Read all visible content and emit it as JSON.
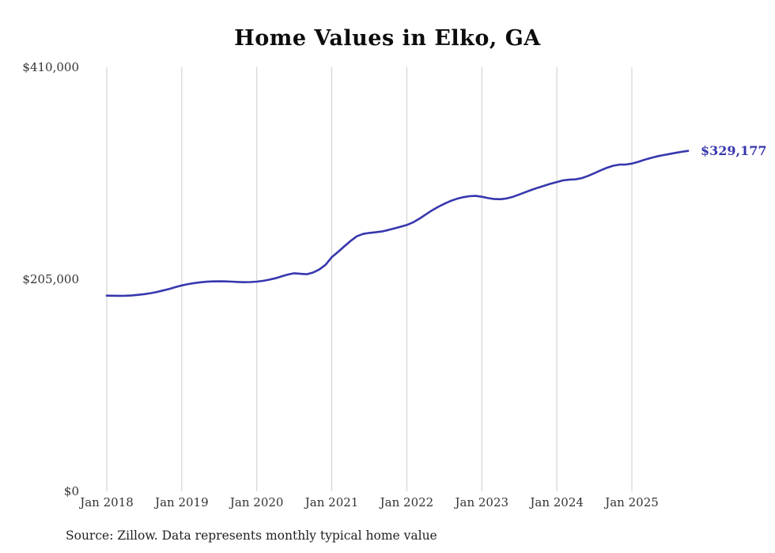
{
  "chart_data": {
    "type": "line",
    "title": "Home Values in Elko, GA",
    "source_note": "Source: Zillow. Data represents monthly typical home value",
    "end_label": "$329,177",
    "end_value": 329177,
    "line_color": "#3737ae",
    "grid_color": "#cccccc",
    "grid": "vertical-only",
    "legend": "none",
    "ylim": [
      0,
      410000
    ],
    "y_ticks": [
      {
        "label": "$0",
        "value": 0
      },
      {
        "label": "$205,000",
        "value": 205000
      },
      {
        "label": "$410,000",
        "value": 410000
      }
    ],
    "x_tick_labels": [
      "Jan 2018",
      "Jan 2019",
      "Jan 2020",
      "Jan 2021",
      "Jan 2022",
      "Jan 2023",
      "Jan 2024",
      "Jan 2025"
    ],
    "x_start": "Jan 2018",
    "frequency": "monthly",
    "values": [
      189200,
      189100,
      189000,
      189100,
      189400,
      189900,
      190600,
      191500,
      192700,
      194100,
      195700,
      197400,
      199000,
      200300,
      201300,
      202100,
      202600,
      202900,
      203000,
      202900,
      202700,
      202400,
      202200,
      202300,
      202700,
      203500,
      204600,
      206000,
      207800,
      209600,
      210800,
      210300,
      209900,
      211500,
      214500,
      219000,
      226400,
      231500,
      236800,
      242000,
      246500,
      248800,
      249800,
      250400,
      251200,
      252600,
      254200,
      255800,
      257500,
      260000,
      263500,
      267500,
      271500,
      275000,
      278000,
      280700,
      282800,
      284300,
      285300,
      285600,
      284800,
      283500,
      282600,
      282400,
      283200,
      284800,
      287000,
      289300,
      291500,
      293600,
      295500,
      297300,
      299000,
      300600,
      301300,
      301600,
      302800,
      305000,
      307600,
      310300,
      312800,
      314800,
      315800,
      315900,
      316800,
      318500,
      320500,
      322300,
      323800,
      325000,
      326100,
      327200,
      328200,
      329177
    ]
  }
}
